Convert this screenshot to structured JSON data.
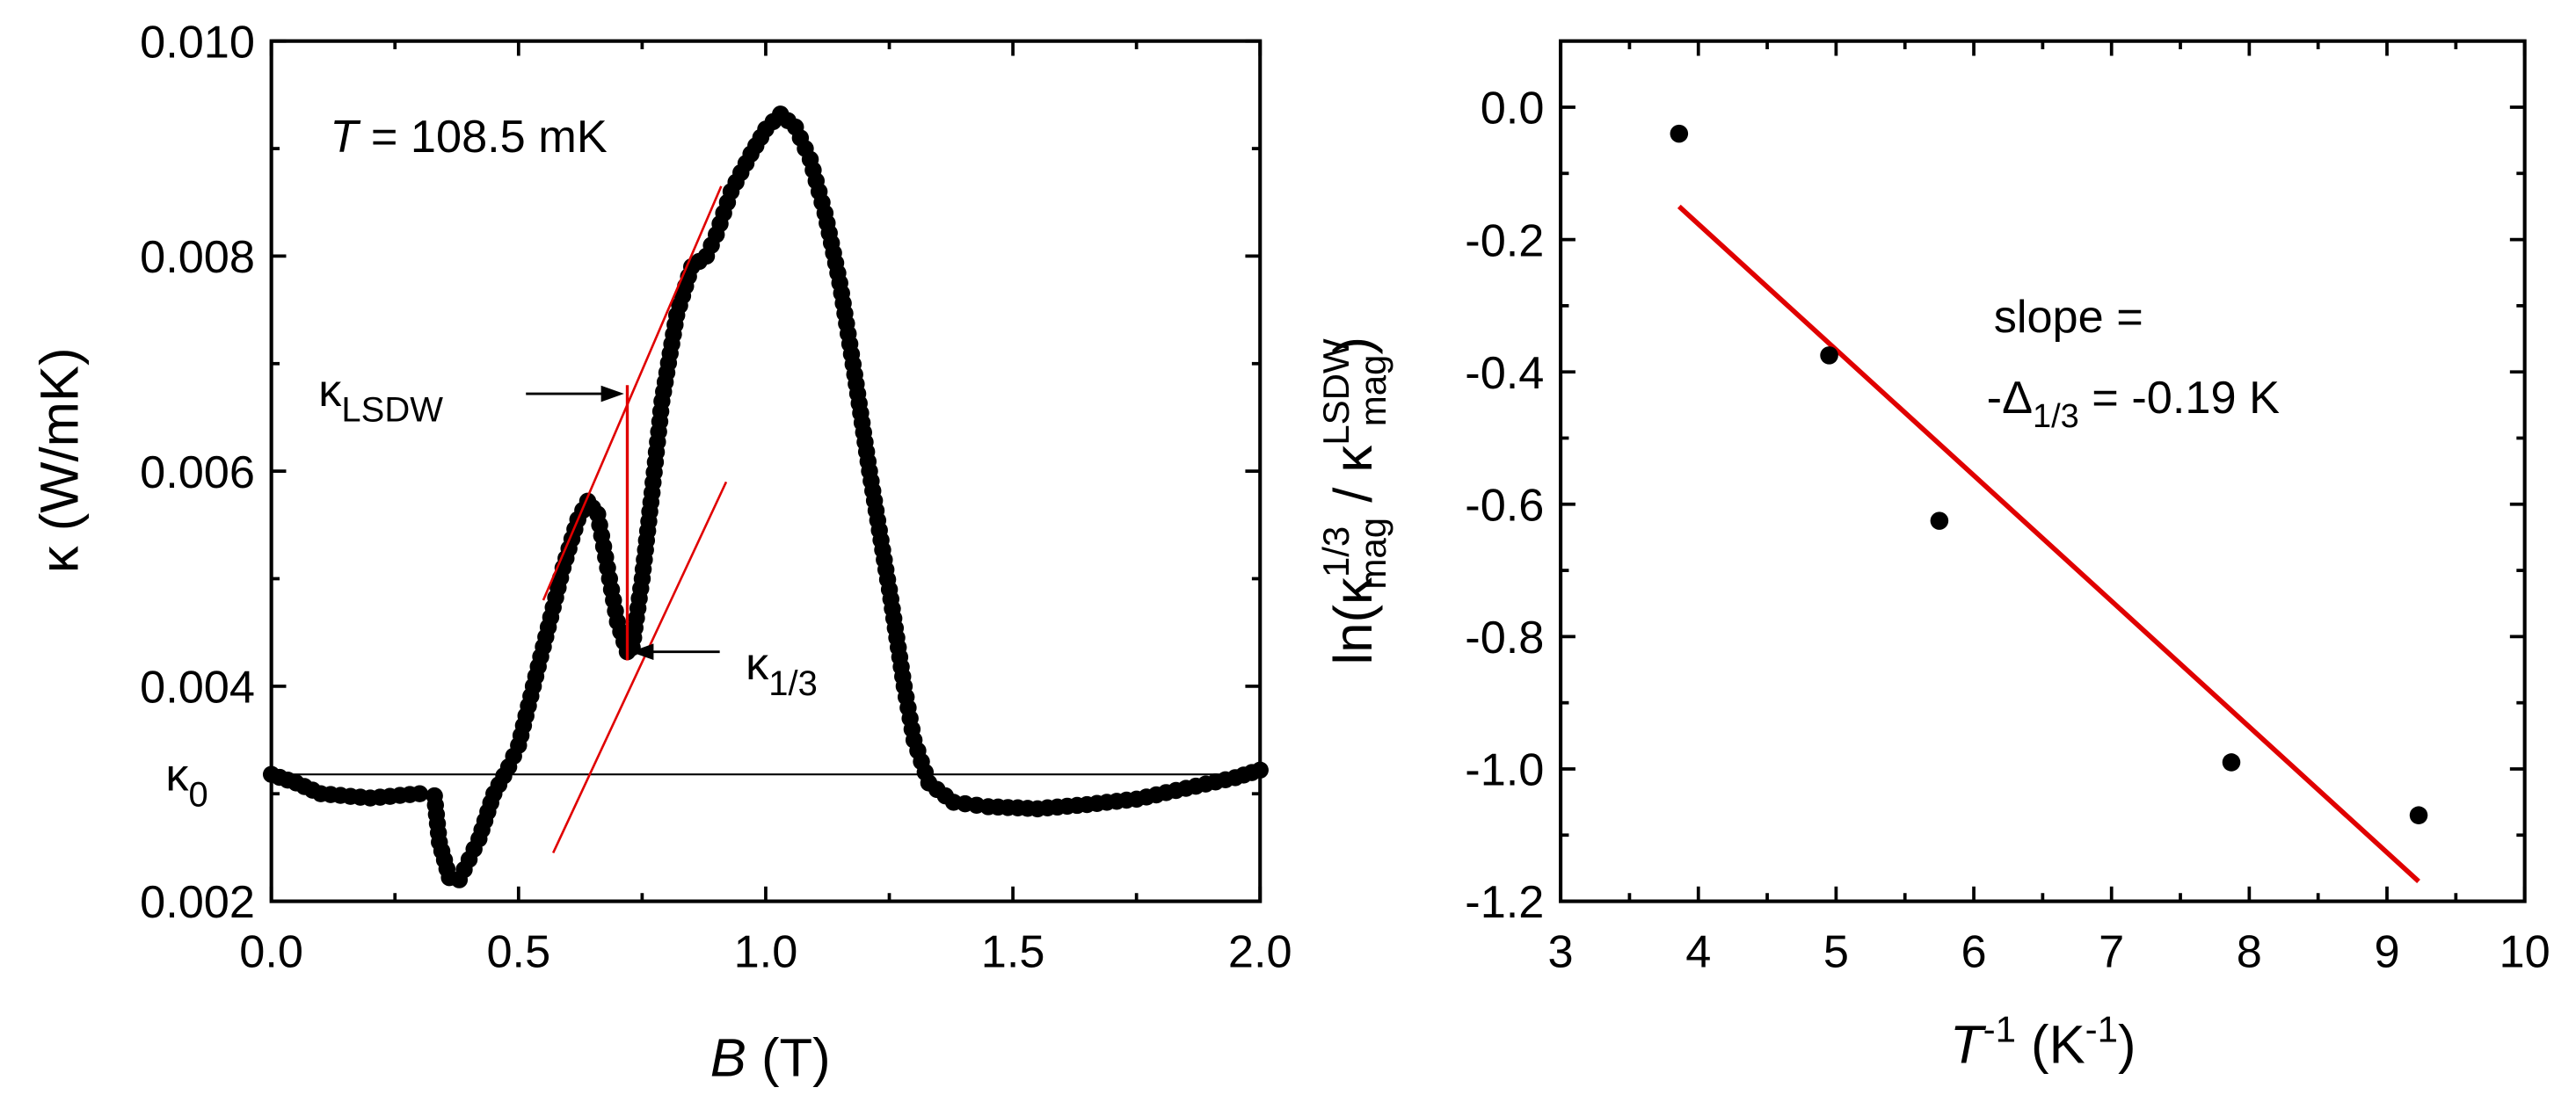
{
  "chart_data": [
    {
      "type": "scatter",
      "id": "left",
      "xlabel_italic": "B",
      "xlabel_rest": " (T)",
      "ylabel": "κ (W/mK)",
      "xlim": [
        0.0,
        2.0
      ],
      "ylim": [
        0.002,
        0.01
      ],
      "xticks": [
        "0.0",
        "0.5",
        "1.0",
        "1.5",
        "2.0"
      ],
      "xtick_values": [
        0.0,
        0.5,
        1.0,
        1.5,
        2.0
      ],
      "yticks": [
        "0.002",
        "0.004",
        "0.006",
        "0.008",
        "0.010"
      ],
      "ytick_values": [
        0.002,
        0.004,
        0.006,
        0.008,
        0.01
      ],
      "temperature_label_italic": "T",
      "temperature_label_rest": " = 108.5 mK",
      "kappa0_label": "κ",
      "kappa0_sub": "0",
      "kappa0_value": 0.00318,
      "lsdw_label": "κ",
      "lsdw_sub": "LSDW",
      "third_label": "κ",
      "third_sub": "1/3",
      "vertical_marker_B": 0.72,
      "fit_lines": [
        {
          "x": [
            0.55,
            0.91
          ],
          "y": [
            0.0048,
            0.00865
          ]
        },
        {
          "x": [
            0.57,
            0.92
          ],
          "y": [
            0.00245,
            0.0059
          ]
        }
      ],
      "lsdw_arrow_value": 0.00672,
      "third_arrow_value": 0.00432,
      "curve_knots": [
        [
          0.0,
          0.00318
        ],
        [
          0.05,
          0.0031
        ],
        [
          0.1,
          0.003
        ],
        [
          0.2,
          0.00296
        ],
        [
          0.3,
          0.003
        ],
        [
          0.33,
          0.00298
        ],
        [
          0.34,
          0.00255
        ],
        [
          0.36,
          0.00222
        ],
        [
          0.38,
          0.0022
        ],
        [
          0.42,
          0.00258
        ],
        [
          0.45,
          0.003
        ],
        [
          0.48,
          0.00325
        ],
        [
          0.5,
          0.00345
        ],
        [
          0.53,
          0.004
        ],
        [
          0.56,
          0.00455
        ],
        [
          0.59,
          0.0051
        ],
        [
          0.62,
          0.00555
        ],
        [
          0.64,
          0.00572
        ],
        [
          0.66,
          0.0056
        ],
        [
          0.68,
          0.0051
        ],
        [
          0.7,
          0.0046
        ],
        [
          0.72,
          0.00432
        ],
        [
          0.73,
          0.00436
        ],
        [
          0.75,
          0.005
        ],
        [
          0.77,
          0.0058
        ],
        [
          0.79,
          0.00665
        ],
        [
          0.82,
          0.00745
        ],
        [
          0.85,
          0.0079
        ],
        [
          0.88,
          0.008
        ],
        [
          0.9,
          0.0082
        ],
        [
          0.93,
          0.0086
        ],
        [
          0.97,
          0.00895
        ],
        [
          1.0,
          0.00918
        ],
        [
          1.03,
          0.00932
        ],
        [
          1.06,
          0.0092
        ],
        [
          1.09,
          0.0089
        ],
        [
          1.12,
          0.0084
        ],
        [
          1.15,
          0.00775
        ],
        [
          1.18,
          0.0069
        ],
        [
          1.21,
          0.006
        ],
        [
          1.25,
          0.0049
        ],
        [
          1.28,
          0.004
        ],
        [
          1.3,
          0.0035
        ],
        [
          1.33,
          0.0031
        ],
        [
          1.38,
          0.00292
        ],
        [
          1.45,
          0.00288
        ],
        [
          1.55,
          0.00286
        ],
        [
          1.65,
          0.0029
        ],
        [
          1.75,
          0.00295
        ],
        [
          1.85,
          0.00305
        ],
        [
          1.95,
          0.00315
        ],
        [
          2.0,
          0.00322
        ]
      ]
    },
    {
      "type": "scatter",
      "id": "right",
      "xlabel_italic": "T",
      "xlabel_sup1": "-1",
      "xlabel_rest": " (K",
      "xlabel_sup2": "-1",
      "xlabel_close": ")",
      "ylabel_prefix": "ln(κ",
      "ylabel_sup1": "1/3",
      "ylabel_sub1": "mag",
      "ylabel_mid": " / κ",
      "ylabel_sup2": "LSDW",
      "ylabel_sub2": "mag",
      "ylabel_close": ")",
      "xlim": [
        3,
        10
      ],
      "ylim": [
        -1.2,
        0.1
      ],
      "xticks": [
        "3",
        "4",
        "5",
        "6",
        "7",
        "8",
        "9",
        "10"
      ],
      "xtick_values": [
        3,
        4,
        5,
        6,
        7,
        8,
        9,
        10
      ],
      "yticks": [
        "0.0",
        "-0.2",
        "-0.4",
        "-0.6",
        "-0.8",
        "-1.0",
        "-1.2"
      ],
      "ytick_values": [
        0.0,
        -0.2,
        -0.4,
        -0.6,
        -0.8,
        -1.0,
        -1.2
      ],
      "points": [
        {
          "x": 3.86,
          "y": -0.04
        },
        {
          "x": 4.95,
          "y": -0.375
        },
        {
          "x": 5.75,
          "y": -0.625
        },
        {
          "x": 7.87,
          "y": -0.99
        },
        {
          "x": 9.23,
          "y": -1.07
        }
      ],
      "fit_line": {
        "x": [
          3.86,
          9.23
        ],
        "y": [
          -0.15,
          -1.17
        ]
      },
      "fit_color": "#e00000",
      "annotation_line1": "slope =",
      "annotation_line2_prefix": "-Δ",
      "annotation_line2_sub": "1/3",
      "annotation_line2_rest": " = -0.19 K"
    }
  ],
  "colors": {
    "marker": "#000000",
    "fit": "#e00000",
    "axis": "#000000"
  }
}
